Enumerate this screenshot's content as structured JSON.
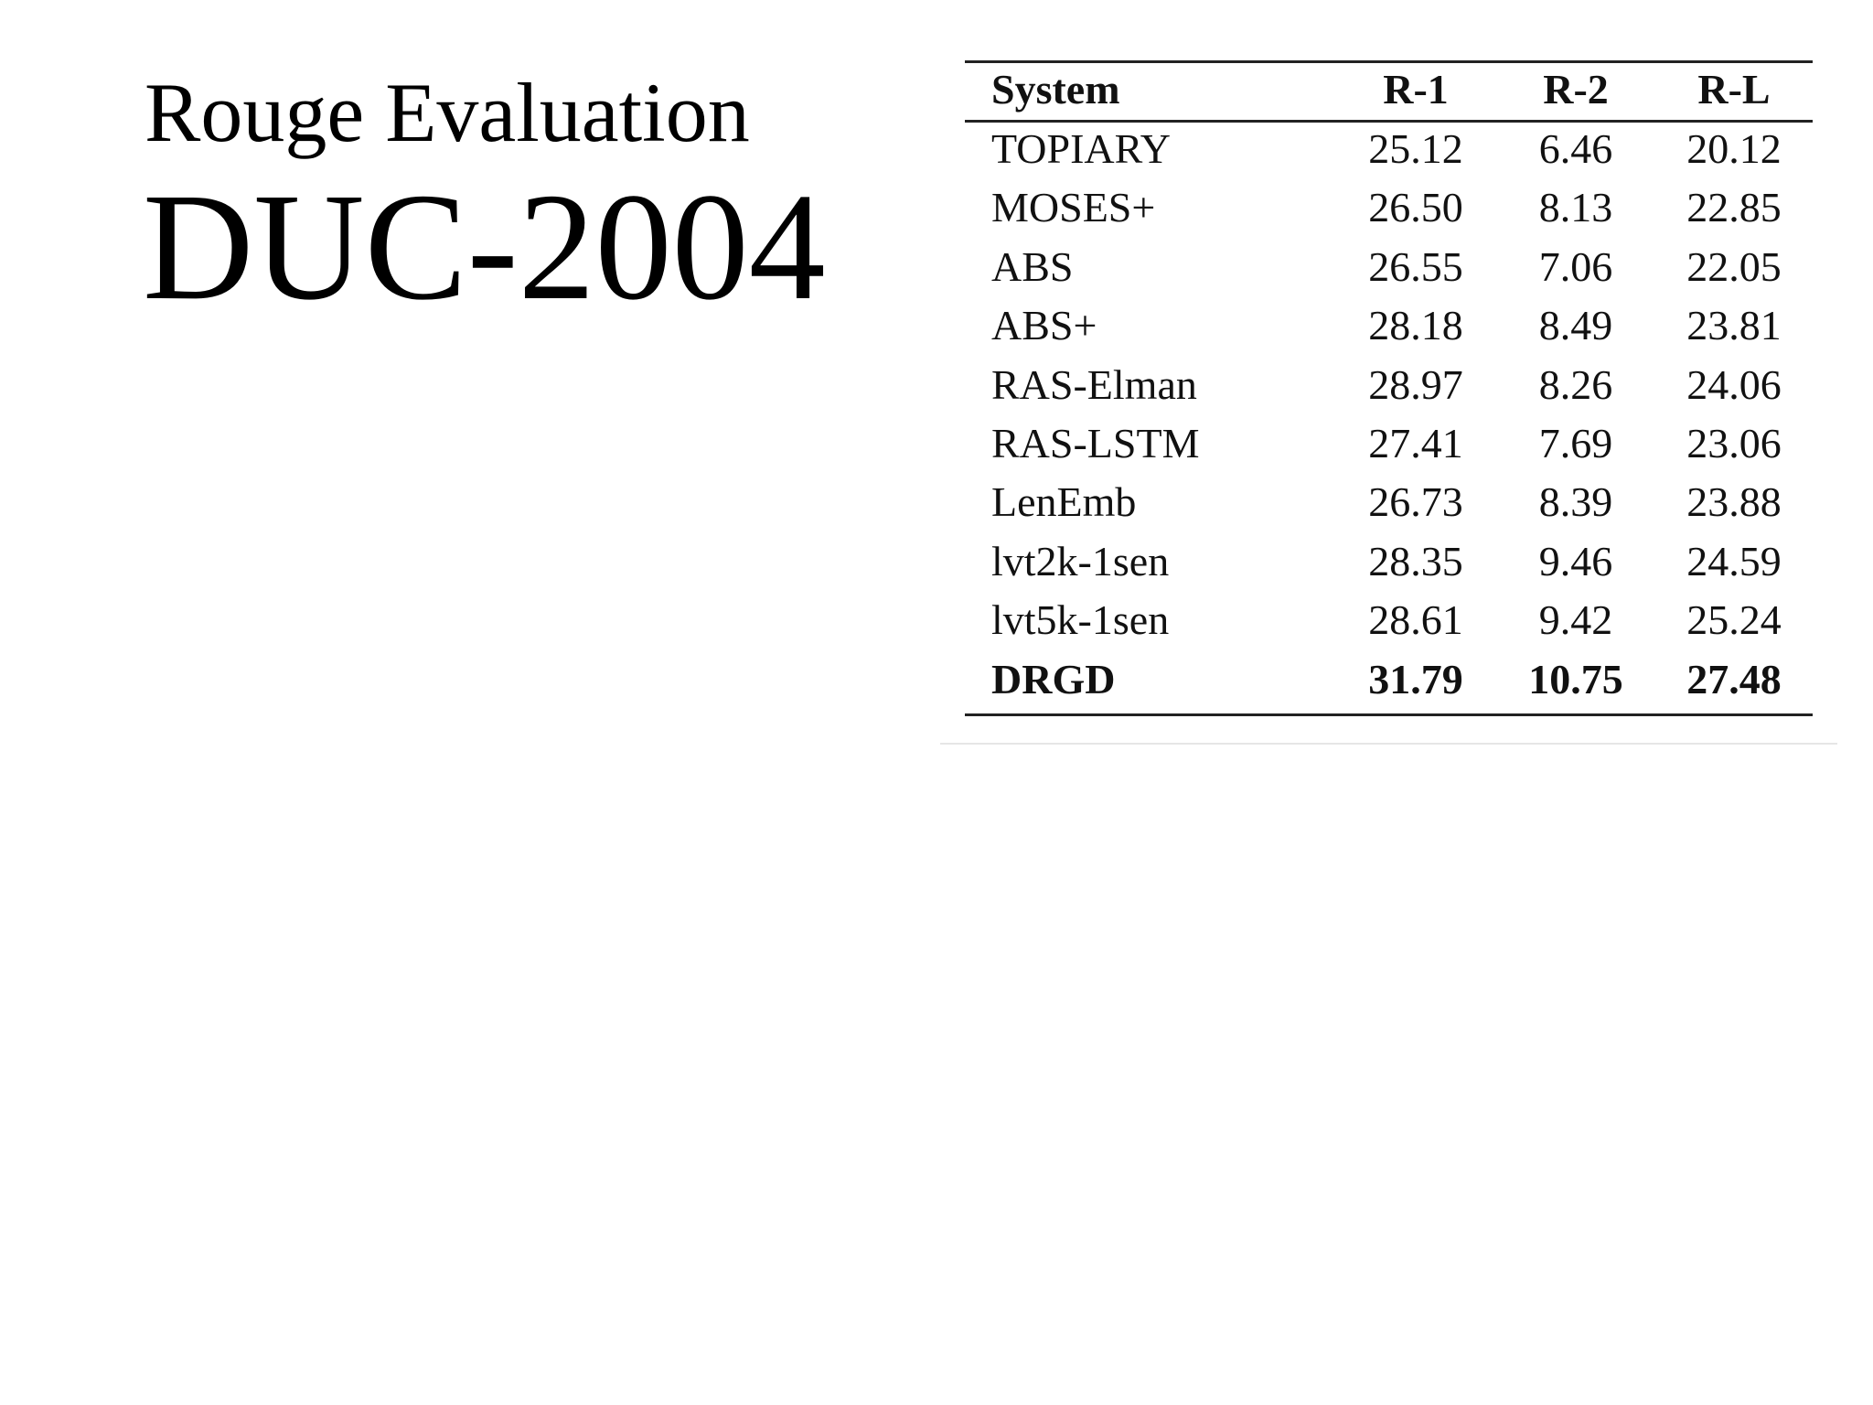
{
  "header": {
    "title": "Rouge Evaluation",
    "subtitle": "DUC-2004"
  },
  "table": {
    "columns": [
      "System",
      "R-1",
      "R-2",
      "R-L"
    ],
    "rows": [
      [
        "TOPIARY",
        "25.12",
        "6.46",
        "20.12"
      ],
      [
        "MOSES+",
        "26.50",
        "8.13",
        "22.85"
      ],
      [
        "ABS",
        "26.55",
        "7.06",
        "22.05"
      ],
      [
        "ABS+",
        "28.18",
        "8.49",
        "23.81"
      ],
      [
        "RAS-Elman",
        "28.97",
        "8.26",
        "24.06"
      ],
      [
        "RAS-LSTM",
        "27.41",
        "7.69",
        "23.06"
      ],
      [
        "LenEmb",
        "26.73",
        "8.39",
        "23.88"
      ],
      [
        "lvt2k-1sen",
        "28.35",
        "9.46",
        "24.59"
      ],
      [
        "lvt5k-1sen",
        "28.61",
        "9.42",
        "25.24"
      ],
      [
        "DRGD",
        "31.79",
        "10.75",
        "27.48"
      ]
    ]
  }
}
